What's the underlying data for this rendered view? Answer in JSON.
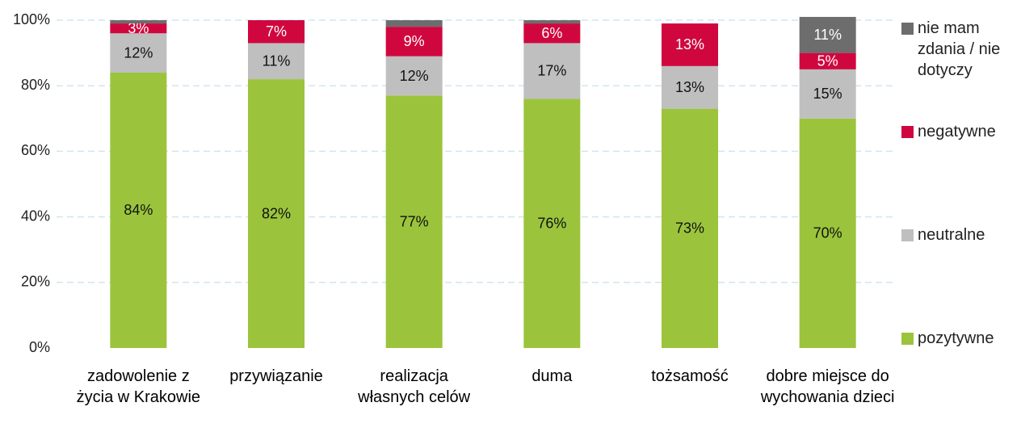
{
  "chart_data": {
    "type": "stacked_bar",
    "categories": [
      "zadowolenie z życia w Krakowie",
      "przywiązanie",
      "realizacja własnych celów",
      "duma",
      "tożsamość",
      "dobre miejsce do wychowania dzieci"
    ],
    "series": [
      {
        "name": "pozytywne",
        "color": "#9bc43c",
        "label_color": "#111111",
        "values": [
          84,
          82,
          77,
          76,
          73,
          70
        ],
        "value_labels": [
          "84%",
          "82%",
          "77%",
          "76%",
          "73%",
          "70%"
        ]
      },
      {
        "name": "neutralne",
        "color": "#bfbfbf",
        "label_color": "#111111",
        "values": [
          12,
          11,
          12,
          17,
          13,
          15
        ],
        "value_labels": [
          "12%",
          "11%",
          "12%",
          "17%",
          "13%",
          "15%"
        ]
      },
      {
        "name": "negatywne",
        "color": "#d0073f",
        "label_color": "#ffffff",
        "values": [
          3,
          7,
          9,
          6,
          13,
          5
        ],
        "value_labels": [
          "3%",
          "7%",
          "9%",
          "6%",
          "13%",
          "5%"
        ]
      },
      {
        "name": "nie mam zdania / nie dotyczy",
        "color": "#6d6d6d",
        "label_color": "#ffffff",
        "values": [
          1,
          0,
          2,
          1,
          0,
          11
        ],
        "value_labels": [
          null,
          null,
          null,
          null,
          null,
          "11%"
        ]
      }
    ],
    "ylim": [
      0,
      100
    ],
    "yticks": [
      {
        "value": 0,
        "label": "0%"
      },
      {
        "value": 20,
        "label": "20%"
      },
      {
        "value": 40,
        "label": "40%"
      },
      {
        "value": 60,
        "label": "60%"
      },
      {
        "value": 80,
        "label": "80%"
      },
      {
        "value": 100,
        "label": "100%"
      }
    ],
    "grid": true,
    "legend": "right"
  }
}
